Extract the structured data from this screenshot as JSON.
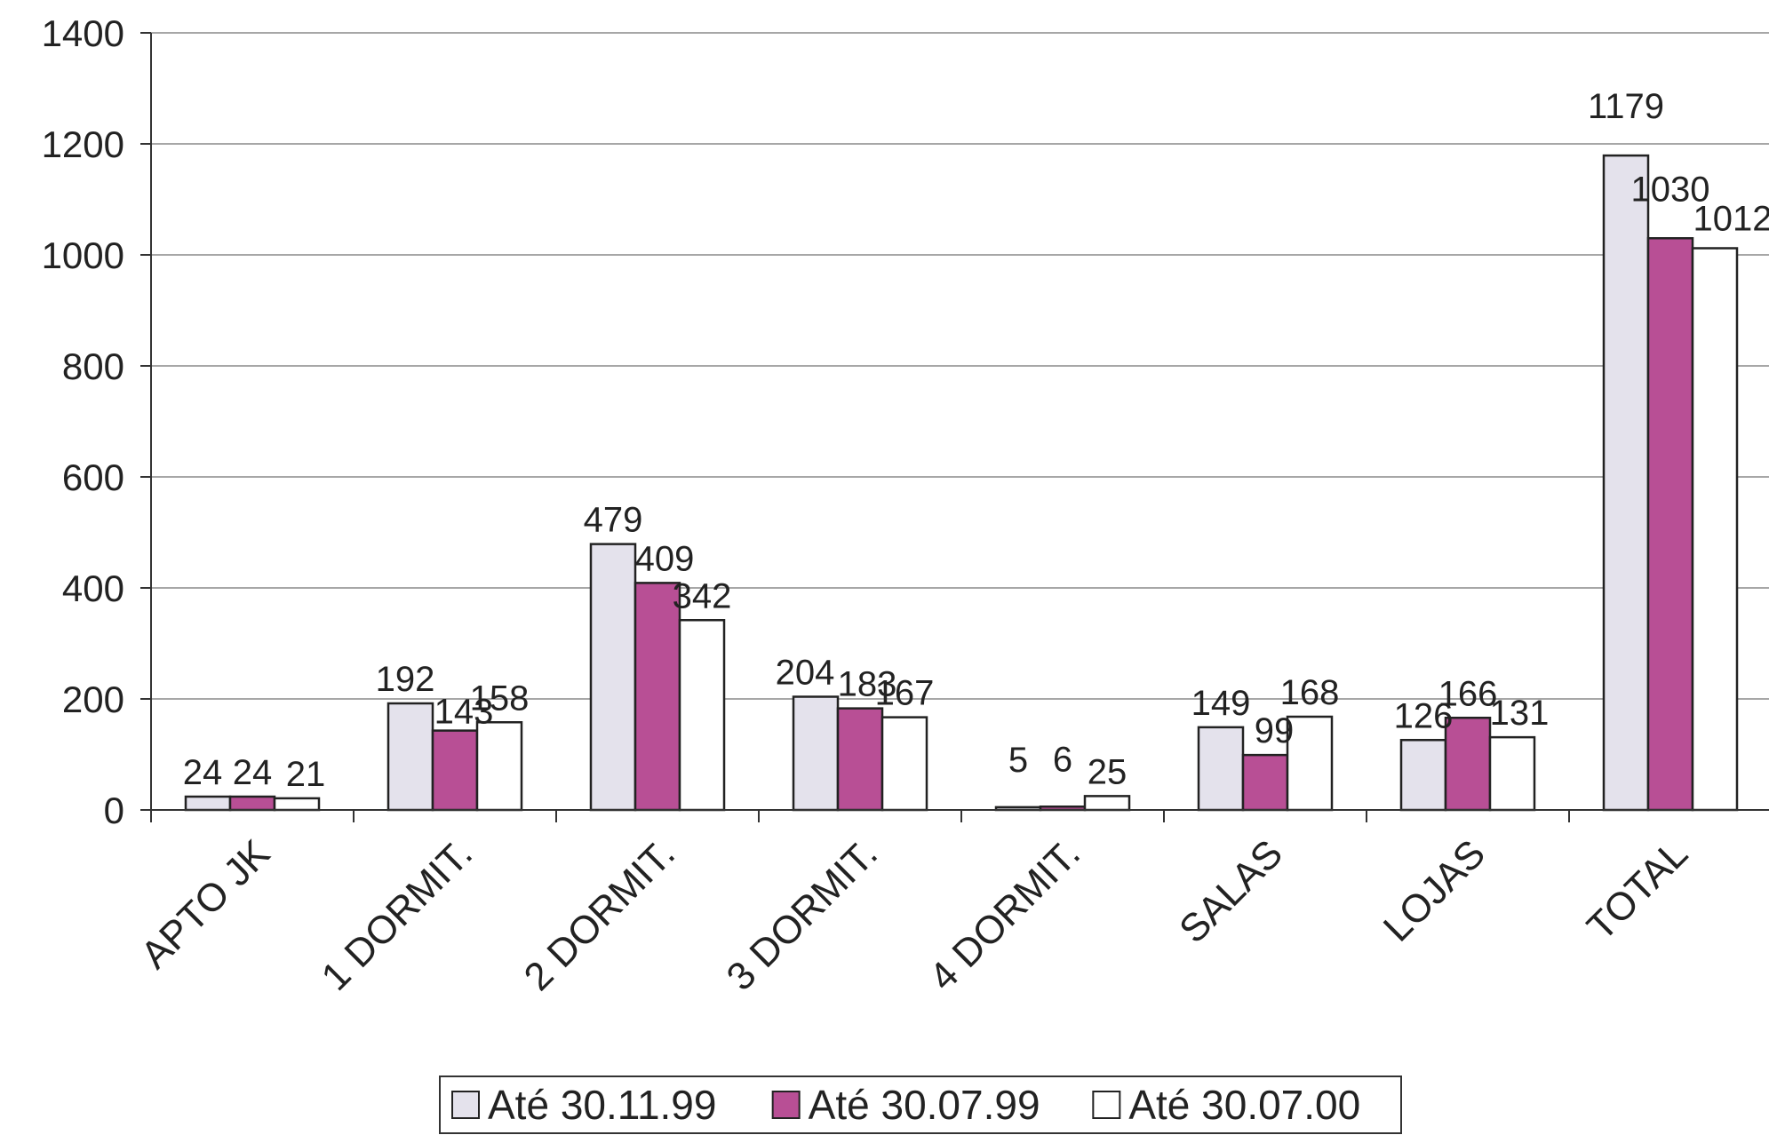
{
  "chart_data": {
    "type": "bar",
    "categories": [
      "APTO JK",
      "1 DORMIT.",
      "2 DORMIT.",
      "3 DORMIT.",
      "4 DORMIT.",
      "SALAS",
      "LOJAS",
      "TOTAL"
    ],
    "series": [
      {
        "name": "Até 30.11.99",
        "color": "#e4e2ec",
        "values": [
          24,
          192,
          479,
          204,
          5,
          149,
          126,
          1179
        ]
      },
      {
        "name": "Até 30.07.99",
        "color": "#b84f95",
        "values": [
          24,
          143,
          409,
          183,
          6,
          99,
          166,
          1030
        ]
      },
      {
        "name": "Até 30.07.00",
        "color": "#ffffff",
        "values": [
          21,
          158,
          342,
          167,
          25,
          168,
          131,
          1012
        ]
      }
    ],
    "data_labels": [
      [
        "24",
        "24",
        "21"
      ],
      [
        "192",
        "143",
        "158"
      ],
      [
        "479",
        "409",
        "342"
      ],
      [
        "204",
        "183",
        "167"
      ],
      [
        "5",
        "6",
        "25"
      ],
      [
        "149",
        "99",
        "168"
      ],
      [
        "126",
        "166",
        "131"
      ],
      [
        "1179",
        "1030",
        "1012"
      ]
    ],
    "y_ticks": [
      "0",
      "200",
      "400",
      "600",
      "800",
      "1000",
      "1200",
      "1400"
    ],
    "ylim": [
      0,
      1400
    ],
    "grid": true,
    "legend_position": "bottom"
  }
}
